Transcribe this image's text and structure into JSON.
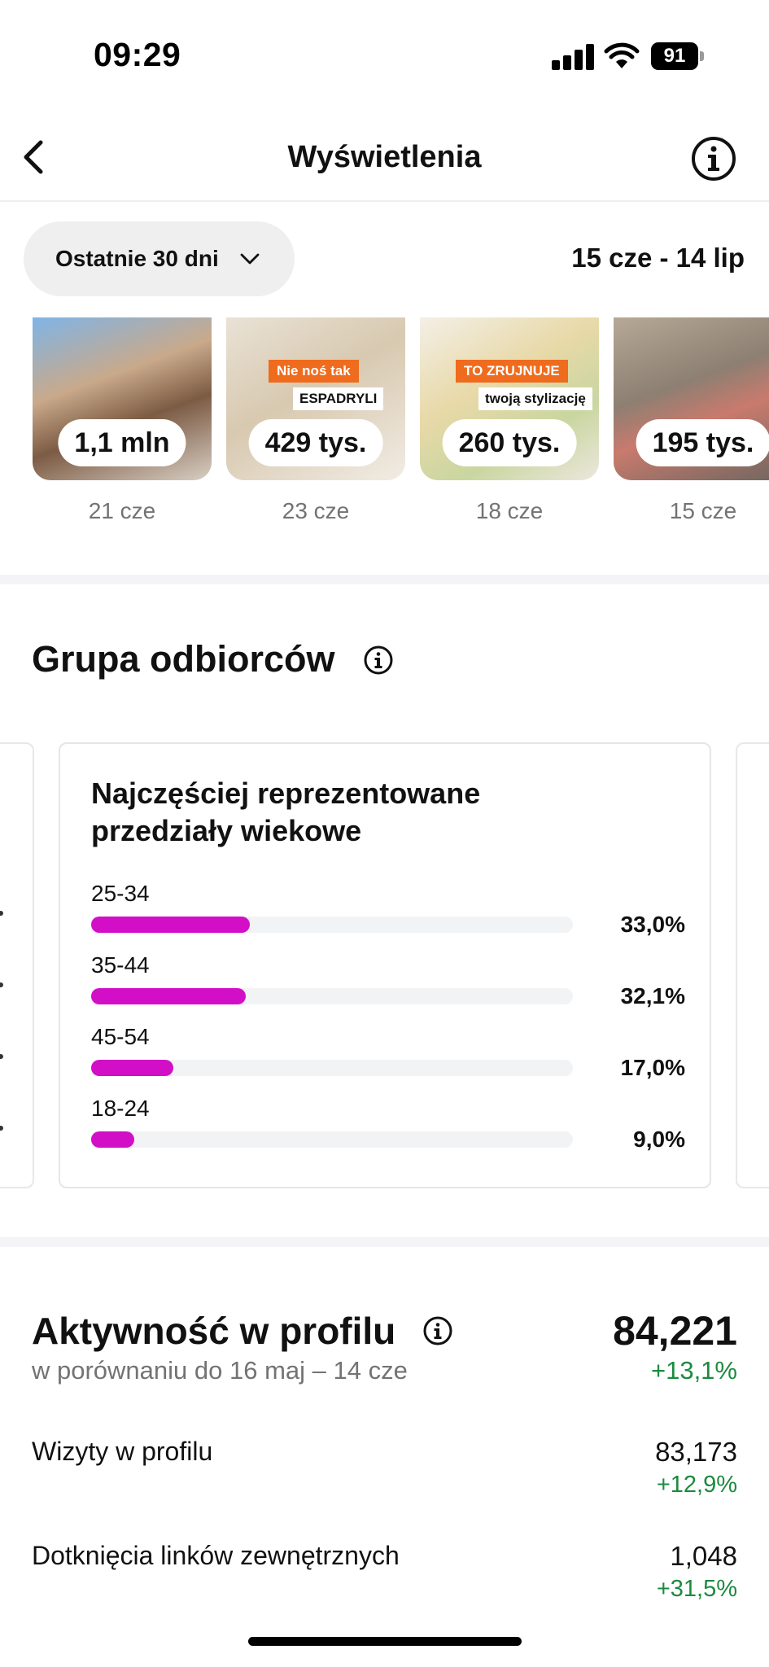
{
  "status_bar": {
    "time": "09:29",
    "battery": "91"
  },
  "header": {
    "title": "Wyświetlenia"
  },
  "filter": {
    "label": "Ostatnie 30 dni",
    "date_range": "15 cze - 14 lip"
  },
  "reels": [
    {
      "views": "1,1 mln",
      "date": "21 cze"
    },
    {
      "views": "429 tys.",
      "date": "23 cze",
      "tag_top": "Nie noś tak",
      "tag_bottom": "ESPADRYLI"
    },
    {
      "views": "260 tys.",
      "date": "18 cze",
      "tag_top": "TO ZRUJNUJE",
      "tag_bottom": "twoją stylizację"
    },
    {
      "views": "195 tys.",
      "date": "15 cze"
    }
  ],
  "audience": {
    "title": "Grupa odbiorców",
    "age_card": {
      "title": "Najczęściej reprezentowane przedziały wiekowe",
      "rows": [
        {
          "label": "25-34",
          "value_text": "33,0%",
          "fraction": 0.33
        },
        {
          "label": "35-44",
          "value_text": "32,1%",
          "fraction": 0.321
        },
        {
          "label": "45-54",
          "value_text": "17,0%",
          "fraction": 0.17
        },
        {
          "label": "18-24",
          "value_text": "9,0%",
          "fraction": 0.09
        }
      ],
      "bar_color": "#d20fc7"
    }
  },
  "activity": {
    "title": "Aktywność w profilu",
    "total": "84,221",
    "comparison": "w porównaniu do 16 maj – 14 cze",
    "change": "+13,1%",
    "rows": [
      {
        "label": "Wizyty w profilu",
        "value": "83,173",
        "change": "+12,9%"
      },
      {
        "label": "Dotknięcia linków zewnętrznych",
        "value": "1,048",
        "change": "+31,5%"
      }
    ],
    "positive_color": "#1c8a3f"
  }
}
